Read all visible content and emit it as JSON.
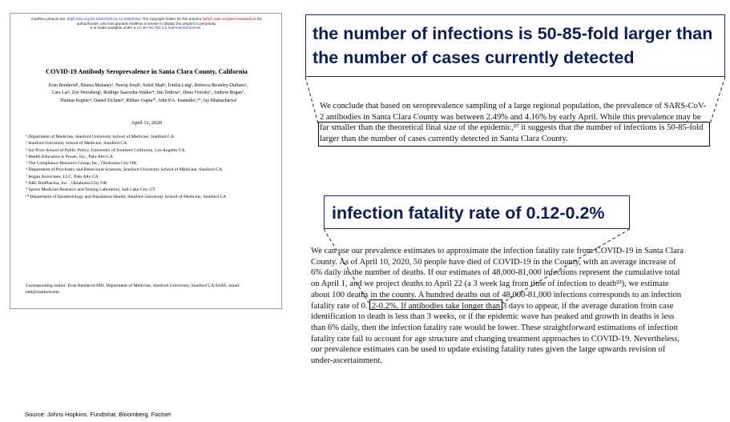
{
  "paper": {
    "header": {
      "prefix": "medRxiv preprint doi: ",
      "doi": "https://doi.org/10.1101/2020.04.14.20062463",
      "mid": ". The copyright holder for this preprint ",
      "peer": "(which was not peer-reviewed)",
      "suffix": " is the",
      "line2": "author/funder, who has granted medRxiv a license to display the preprint in perpetuity.",
      "line3_prefix": "It is made available under a ",
      "line3_link": "CC-BY-NC-ND 4.0 International license",
      "line3_suffix": " ."
    },
    "title": "COVID-19 Antibody Seroprevalence in Santa Clara County, California",
    "authors": [
      "Eran Bendavid¹, Bianca Mulaney², Neeraj Sood³, Soleil Shah², Emilia Ling², Rebecca Bromley-Dulfano²,",
      "Cara Lai², Zoe Weissberg², Rodrigo Saavedra-Walker⁴, Jim Tedrow⁵, Dona Tversky⁶, Andrew Bogan⁷,",
      "Thomas Kupiec⁸, Daniel Eichner⁹, Ribhav Gupta¹⁰, John P.A. Ioannidis¹,¹⁰, Jay Bhattacharya¹"
    ],
    "date": "April 11, 2020",
    "affiliations": [
      "¹ Department of Medicine, Stanford University School of Medicine, Stanford CA",
      "² Stanford University School of Medicine, Stanford CA",
      "³ Sol Price School of Public Policy, University of Southern California, Los Angeles CA",
      "⁴ Health Education is Power, Inc., Palo Alto CA",
      "⁵ The Compliance Resource Group, Inc., Oklahoma City OK",
      "⁶ Department of Psychiatry and Behavioral Sciences, Stanford University School of Medicine, Stanford CA",
      "⁷ Bogan Associates, LLC, Palo Alto CA",
      "⁸ ARL BioPharma, Inc. , Oklahoma City OK",
      "⁹ Sports Medicine Research and Testing Laboratory, Salt Lake City UT",
      "¹⁰ Department of Epidemiology and Population Health, Stanford University School of Medicine, Stanford CA"
    ],
    "corresponding": "Corresponding author: Eran Bendavid MD, Department of Medicine, Stanford University, Stanford CA 94305.  email: ebd@stanford.edu."
  },
  "callouts": {
    "fold_larger": "the number of infections is 50-85-fold larger than the number of cases currently detected",
    "ifr": "infection fatality rate of 0.12-0.2%"
  },
  "conclusion_paragraph": "We conclude that based on seroprevalence sampling of a large regional population, the prevalence of SARS-CoV-2 antibodies in Santa Clara County was between 2.49% and 4.16% by early April. While this prevalence may be far smaller than the theoretical final size of the epidemic,²⁷ it suggests that the number of infections is 50-85-fold larger than the number of cases currently detected in Santa Clara County.",
  "fatality_paragraph": "We can use our prevalence estimates to approximate the infection fatality rate from COVID-19 in Santa Clara County. As of April 10, 2020, 50 people have died of COVID-19 in the County, with an average increase of 6% daily in the number of deaths. If our estimates of 48,000-81,000 infections represent the cumulative total on April 1, and we project deaths to April 22 (a 3 week lag from time of infection to death²²), we estimate about 100 deaths in the county. A hundred deaths out of 48,000-81,000 infections corresponds to an infection fatality rate of 0.12-0.2%. If antibodies take longer than 3 days to appear, if the average duration from case identification to death is less than 3 weeks, or if the epidemic wave has peaked and growth in deaths is less than 6% daily, then the infection fatality rate would be lower. These straightforward estimations of infection fatality rate fail to account for age structure and changing treatment approaches to COVID-19. Nevertheless, our prevalence estimates can be used to update existing fatality rates given the large upwards revision of under-ascertainment.",
  "source": "Source: Johns Hopkins. Fundstrat, Bloomberg, Factset",
  "colors": {
    "callout_text": "#0b1f55",
    "link": "#1f3fb5",
    "peer_review_note": "#b00000"
  }
}
